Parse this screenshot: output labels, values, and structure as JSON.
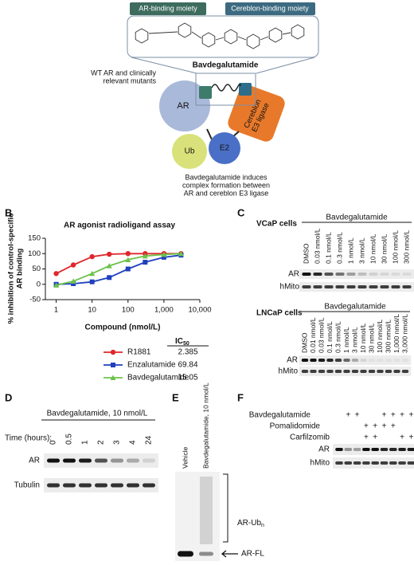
{
  "panels": {
    "A": {
      "letter": "A",
      "ar_moiety": "AR-binding moiety",
      "crbn_moiety": "Cereblon-binding moiety",
      "compound": "Bavdegalutamide",
      "wt_note": [
        "WT AR and clinically",
        "relevant mutants"
      ],
      "ar": "AR",
      "cereblon": [
        "Cereblon",
        "E3 ligase"
      ],
      "ub": "Ub",
      "e2": "E2",
      "caption": [
        "Bavdegalutamide induces",
        "complex formation between",
        "AR and cereblon E3 ligase"
      ]
    },
    "B": {
      "letter": "B"
    },
    "C": {
      "letter": "C",
      "blots": [
        {
          "cell_line": "VCaP cells",
          "treatment": "Bavdegalutamide",
          "lanes": [
            "DMSO",
            "0.03 nmol/L",
            "0.1 nmol/L",
            "0.3 nmol/L",
            "1 nmol/L",
            "3 nmol/L",
            "10 nmol/L",
            "30 nmol/L",
            "100 nmol/L",
            "300 nmol/L"
          ],
          "rows": [
            "AR",
            "hMito"
          ]
        },
        {
          "cell_line": "LNCaP cells",
          "treatment": "Bavdegalutamide",
          "lanes": [
            "DMSO",
            "0.01 nmol/L",
            "0.03 nmol/L",
            "0.1 nmol/L",
            "0.3 nmol/L",
            "1 nmol/L",
            "3 nmol/L",
            "10 nmol/L",
            "30 nmol/L",
            "100 nmol/L",
            "300 nmol/L",
            "1,000 nmol/L",
            "3,000 nmol/L"
          ],
          "rows": [
            "AR",
            "hMito"
          ]
        }
      ]
    },
    "D": {
      "letter": "D",
      "treatment": "Bavdegalutamide, 10 nmol/L",
      "time_label": "Time (hours):",
      "lanes": [
        "0",
        "0.5",
        "1",
        "2",
        "3",
        "4",
        "24"
      ],
      "rows": [
        "AR",
        "Tubulin"
      ]
    },
    "E": {
      "letter": "E",
      "lanes": [
        "Vehicle",
        "Bavdegalutamide, 10 nmol/L"
      ],
      "ub_label": {
        "main": "AR-Ub",
        "sub": "n"
      },
      "fl_label": "AR-FL"
    },
    "F": {
      "letter": "F",
      "treatments": [
        {
          "name": "Bavdegalutamide",
          "lanes": [
            null,
            "+",
            "+",
            null,
            null,
            "+",
            "+",
            "+",
            "+"
          ]
        },
        {
          "name": "Pomalidomide",
          "lanes": [
            null,
            null,
            null,
            "+",
            "+",
            "+",
            "+",
            null,
            null
          ]
        },
        {
          "name": "Carfilzomib",
          "lanes": [
            null,
            null,
            null,
            "+",
            "+",
            null,
            null,
            "+",
            "+"
          ]
        }
      ],
      "rows": [
        "AR",
        "hMito"
      ]
    }
  },
  "chart_data": {
    "type": "line",
    "title": "AR agonist radioligand assay",
    "x_label": "Compound (nmol/L)",
    "y_label": [
      "% inhibition of control-specific",
      "AR binding"
    ],
    "log_x": true,
    "x": [
      1,
      3,
      10,
      30,
      100,
      300,
      1000,
      3000
    ],
    "xlim": [
      0.5,
      10000
    ],
    "xticks": [
      1,
      10,
      100,
      {
        "value": 1000,
        "label": "1,000"
      },
      {
        "value": 10000,
        "label": "10,000"
      }
    ],
    "ylim": [
      -50,
      150
    ],
    "yticks": [
      -50,
      0,
      50,
      100,
      150
    ],
    "ic50_header": {
      "main": "IC",
      "sub": "50"
    },
    "series": [
      {
        "name": "R1881",
        "color": "#e0262b",
        "marker": "circle",
        "values": [
          35,
          63,
          90,
          98,
          100,
          100,
          100,
          100
        ],
        "ic50": 2.385
      },
      {
        "name": "Enzalutamide",
        "color": "#1f3fbf",
        "marker": "square",
        "values": [
          0,
          2,
          8,
          22,
          50,
          72,
          88,
          95
        ],
        "ic50": 69.84
      },
      {
        "name": "Bavdegalutamide",
        "color": "#6cc24a",
        "marker": "triangle",
        "values": [
          -3,
          10,
          35,
          60,
          80,
          92,
          97,
          100
        ],
        "ic50": 15.05
      }
    ]
  }
}
